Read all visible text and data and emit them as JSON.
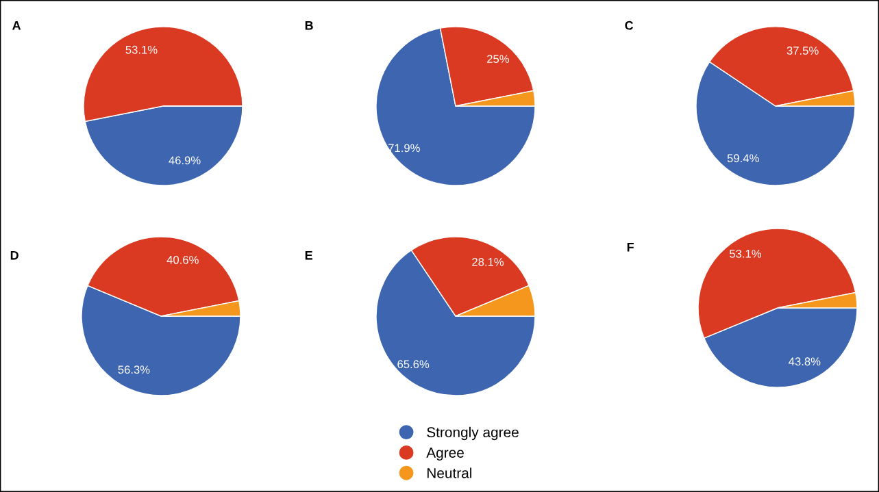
{
  "chart_data": [
    {
      "type": "pie",
      "title": "A",
      "categories": [
        "Strongly agree",
        "Agree",
        "Neutral"
      ],
      "values": [
        46.9,
        53.1,
        0
      ],
      "colors": [
        "#3d65b0",
        "#db3a22",
        "#f5971c"
      ],
      "value_labels": [
        "46.9%",
        "53.1%",
        null
      ],
      "legend": "bottom"
    },
    {
      "type": "pie",
      "title": "B",
      "categories": [
        null,
        null,
        null
      ],
      "values": [
        71.9,
        25,
        3.1
      ],
      "colors": [
        "#3d65b0",
        "#db3a22",
        "#f5971c"
      ],
      "value_labels": [
        "71.9%",
        "25%",
        null
      ],
      "legend": false
    },
    {
      "type": "pie",
      "title": "C",
      "categories": [
        null,
        null,
        null
      ],
      "values": [
        59.4,
        37.5,
        3.1
      ],
      "colors": [
        "#3d65b0",
        "#db3a22",
        "#f5971c"
      ],
      "value_labels": [
        "59.4%",
        "37.5%",
        null
      ],
      "legend": false
    },
    {
      "type": "pie",
      "title": "D",
      "categories": [
        null,
        null,
        null
      ],
      "values": [
        56.3,
        40.6,
        3.1
      ],
      "colors": [
        "#3d65b0",
        "#db3a22",
        "#f5971c"
      ],
      "value_labels": [
        "56.3%",
        "40.6%",
        null
      ],
      "legend": false
    },
    {
      "type": "pie",
      "title": "E",
      "categories": [
        null,
        null,
        null
      ],
      "values": [
        65.6,
        28.1,
        6.3
      ],
      "colors": [
        "#3d65b0",
        "#db3a22",
        "#f5971c"
      ],
      "value_labels": [
        "65.6%",
        "28.1%",
        null
      ],
      "legend": false
    },
    {
      "type": "pie",
      "title": "F",
      "categories": [
        null,
        null,
        null
      ],
      "values": [
        43.8,
        53.1,
        3.1
      ],
      "colors": [
        "#3d65b0",
        "#db3a22",
        "#f5971c"
      ],
      "value_labels": [
        "43.8%",
        "53.1%",
        null
      ],
      "legend": false
    }
  ]
}
